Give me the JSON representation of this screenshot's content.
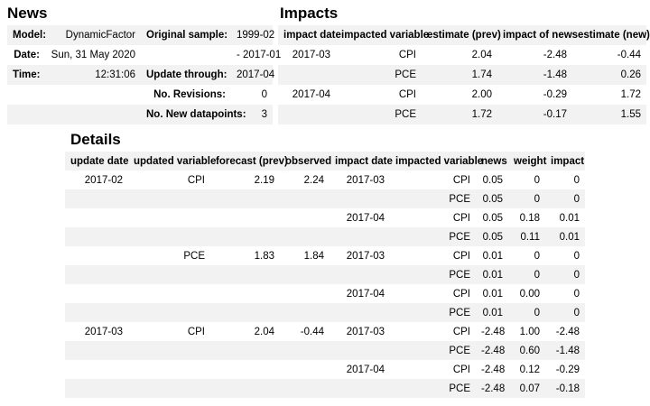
{
  "colors": {
    "stripe": "#f2f2f2",
    "text": "#000000",
    "background": "#ffffff"
  },
  "news": {
    "title": "News",
    "rows": [
      [
        "Model:",
        "DynamicFactor",
        "Original sample:",
        "1999-02"
      ],
      [
        "Date:",
        "Sun, 31 May 2020",
        "",
        "- 2017-01"
      ],
      [
        "Time:",
        "12:31:06",
        "Update through:",
        "2017-04"
      ],
      [
        "",
        "",
        "No. Revisions:",
        "0"
      ],
      [
        "",
        "",
        "No. New datapoints:",
        "3"
      ]
    ]
  },
  "impacts": {
    "title": "Impacts",
    "headers": [
      "impact date",
      "impacted variable",
      "estimate (prev)",
      "impact of news",
      "estimate (new)"
    ],
    "rows": [
      [
        "2017-03",
        "CPI",
        "2.04",
        "-2.48",
        "-0.44"
      ],
      [
        "",
        "PCE",
        "1.74",
        "-1.48",
        "0.26"
      ],
      [
        "2017-04",
        "CPI",
        "2.00",
        "-0.29",
        "1.72"
      ],
      [
        "",
        "PCE",
        "1.72",
        "-0.17",
        "1.55"
      ]
    ]
  },
  "details": {
    "title": "Details",
    "headers": [
      "update date",
      "updated variable",
      "forecast (prev)",
      "observed",
      "impact date",
      "impacted variable",
      "news",
      "weight",
      "impact"
    ],
    "rows": [
      [
        "2017-02",
        "CPI",
        "2.19",
        "2.24",
        "2017-03",
        "CPI",
        "0.05",
        "0",
        "0"
      ],
      [
        "",
        "",
        "",
        "",
        "",
        "PCE",
        "0.05",
        "0",
        "0"
      ],
      [
        "",
        "",
        "",
        "",
        "2017-04",
        "CPI",
        "0.05",
        "0.18",
        "0.01"
      ],
      [
        "",
        "",
        "",
        "",
        "",
        "PCE",
        "0.05",
        "0.11",
        "0.01"
      ],
      [
        "",
        "PCE",
        "1.83",
        "1.84",
        "2017-03",
        "CPI",
        "0.01",
        "0",
        "0"
      ],
      [
        "",
        "",
        "",
        "",
        "",
        "PCE",
        "0.01",
        "0",
        "0"
      ],
      [
        "",
        "",
        "",
        "",
        "2017-04",
        "CPI",
        "0.01",
        "0.00",
        "0"
      ],
      [
        "",
        "",
        "",
        "",
        "",
        "PCE",
        "0.01",
        "0",
        "0"
      ],
      [
        "2017-03",
        "CPI",
        "2.04",
        "-0.44",
        "2017-03",
        "CPI",
        "-2.48",
        "1.00",
        "-2.48"
      ],
      [
        "",
        "",
        "",
        "",
        "",
        "PCE",
        "-2.48",
        "0.60",
        "-1.48"
      ],
      [
        "",
        "",
        "",
        "",
        "2017-04",
        "CPI",
        "-2.48",
        "0.12",
        "-0.29"
      ],
      [
        "",
        "",
        "",
        "",
        "",
        "PCE",
        "-2.48",
        "0.07",
        "-0.18"
      ]
    ]
  }
}
